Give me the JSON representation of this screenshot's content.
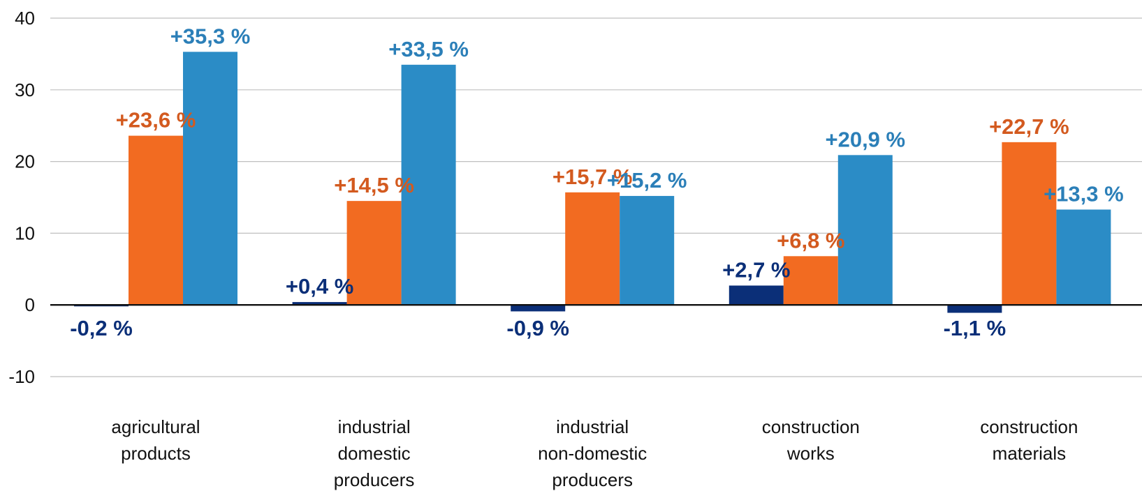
{
  "chart_data": {
    "type": "bar",
    "title": "",
    "xlabel": "",
    "ylabel": "",
    "ylim": [
      -10,
      40
    ],
    "yticks": [
      40,
      30,
      20,
      10,
      0,
      -10
    ],
    "grid": true,
    "categories": [
      [
        "agricultural",
        "products"
      ],
      [
        "industrial",
        "domestic",
        "producers"
      ],
      [
        "industrial",
        "non-domestic",
        "producers"
      ],
      [
        "construction",
        "works"
      ],
      [
        "construction",
        "materials"
      ]
    ],
    "series": [
      {
        "color": "#0b2f78",
        "values": [
          -0.2,
          0.4,
          -0.9,
          2.7,
          -1.1
        ],
        "labels": [
          "-0,2 %",
          "+0,4 %",
          "-0,9 %",
          "+2,7 %",
          "-1,1 %"
        ]
      },
      {
        "color": "#f26b21",
        "label_color": "#d35a1f",
        "values": [
          23.6,
          14.5,
          15.7,
          6.8,
          22.7
        ],
        "labels": [
          "+23,6 %",
          "+14,5 %",
          "+15,7 %",
          "+6,8 %",
          "+22,7 %"
        ]
      },
      {
        "color": "#2b8cc6",
        "label_color": "#2b7fb8",
        "values": [
          35.3,
          33.5,
          15.2,
          20.9,
          13.3
        ],
        "labels": [
          "+35,3 %",
          "+33,5 %",
          "+15,2 %",
          "+20,9 %",
          "+13,3 %"
        ]
      }
    ]
  }
}
